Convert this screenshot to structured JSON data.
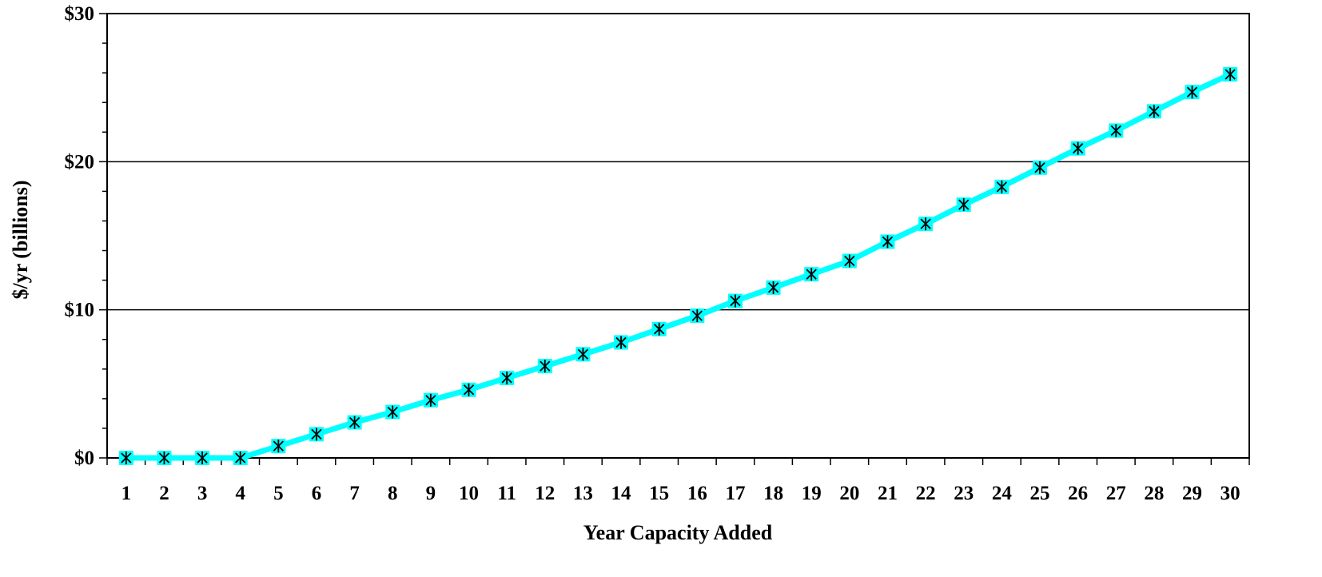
{
  "chart_data": {
    "type": "line",
    "title": "",
    "xlabel": "Year Capacity Added",
    "ylabel": "$/yr (billions)",
    "x": [
      1,
      2,
      3,
      4,
      5,
      6,
      7,
      8,
      9,
      10,
      11,
      12,
      13,
      14,
      15,
      16,
      17,
      18,
      19,
      20,
      21,
      22,
      23,
      24,
      25,
      26,
      27,
      28,
      29,
      30
    ],
    "y": [
      0,
      0,
      0,
      0,
      0.8,
      1.6,
      2.4,
      3.1,
      3.9,
      4.6,
      5.4,
      6.2,
      7.0,
      7.8,
      8.7,
      9.6,
      10.6,
      11.5,
      12.4,
      13.3,
      14.6,
      15.8,
      17.1,
      18.3,
      19.6,
      20.9,
      22.1,
      23.4,
      24.7,
      25.9
    ],
    "ylim": [
      0,
      30
    ],
    "yticks": [
      {
        "value": 0,
        "label": "$0"
      },
      {
        "value": 10,
        "label": "$10"
      },
      {
        "value": 20,
        "label": "$20"
      },
      {
        "value": 30,
        "label": "$30"
      }
    ],
    "xtick_labels": [
      "1",
      "2",
      "3",
      "4",
      "5",
      "6",
      "7",
      "8",
      "9",
      "10",
      "11",
      "12",
      "13",
      "14",
      "15",
      "16",
      "17",
      "18",
      "19",
      "20",
      "21",
      "22",
      "23",
      "24",
      "25",
      "26",
      "27",
      "28",
      "29",
      "30"
    ],
    "grid": "horizontal major lines",
    "legend": "none",
    "colors": {
      "line": "#00ffff",
      "marker": "#000000",
      "axis": "#000000",
      "grid": "#000000"
    },
    "marker": "asterisk"
  }
}
